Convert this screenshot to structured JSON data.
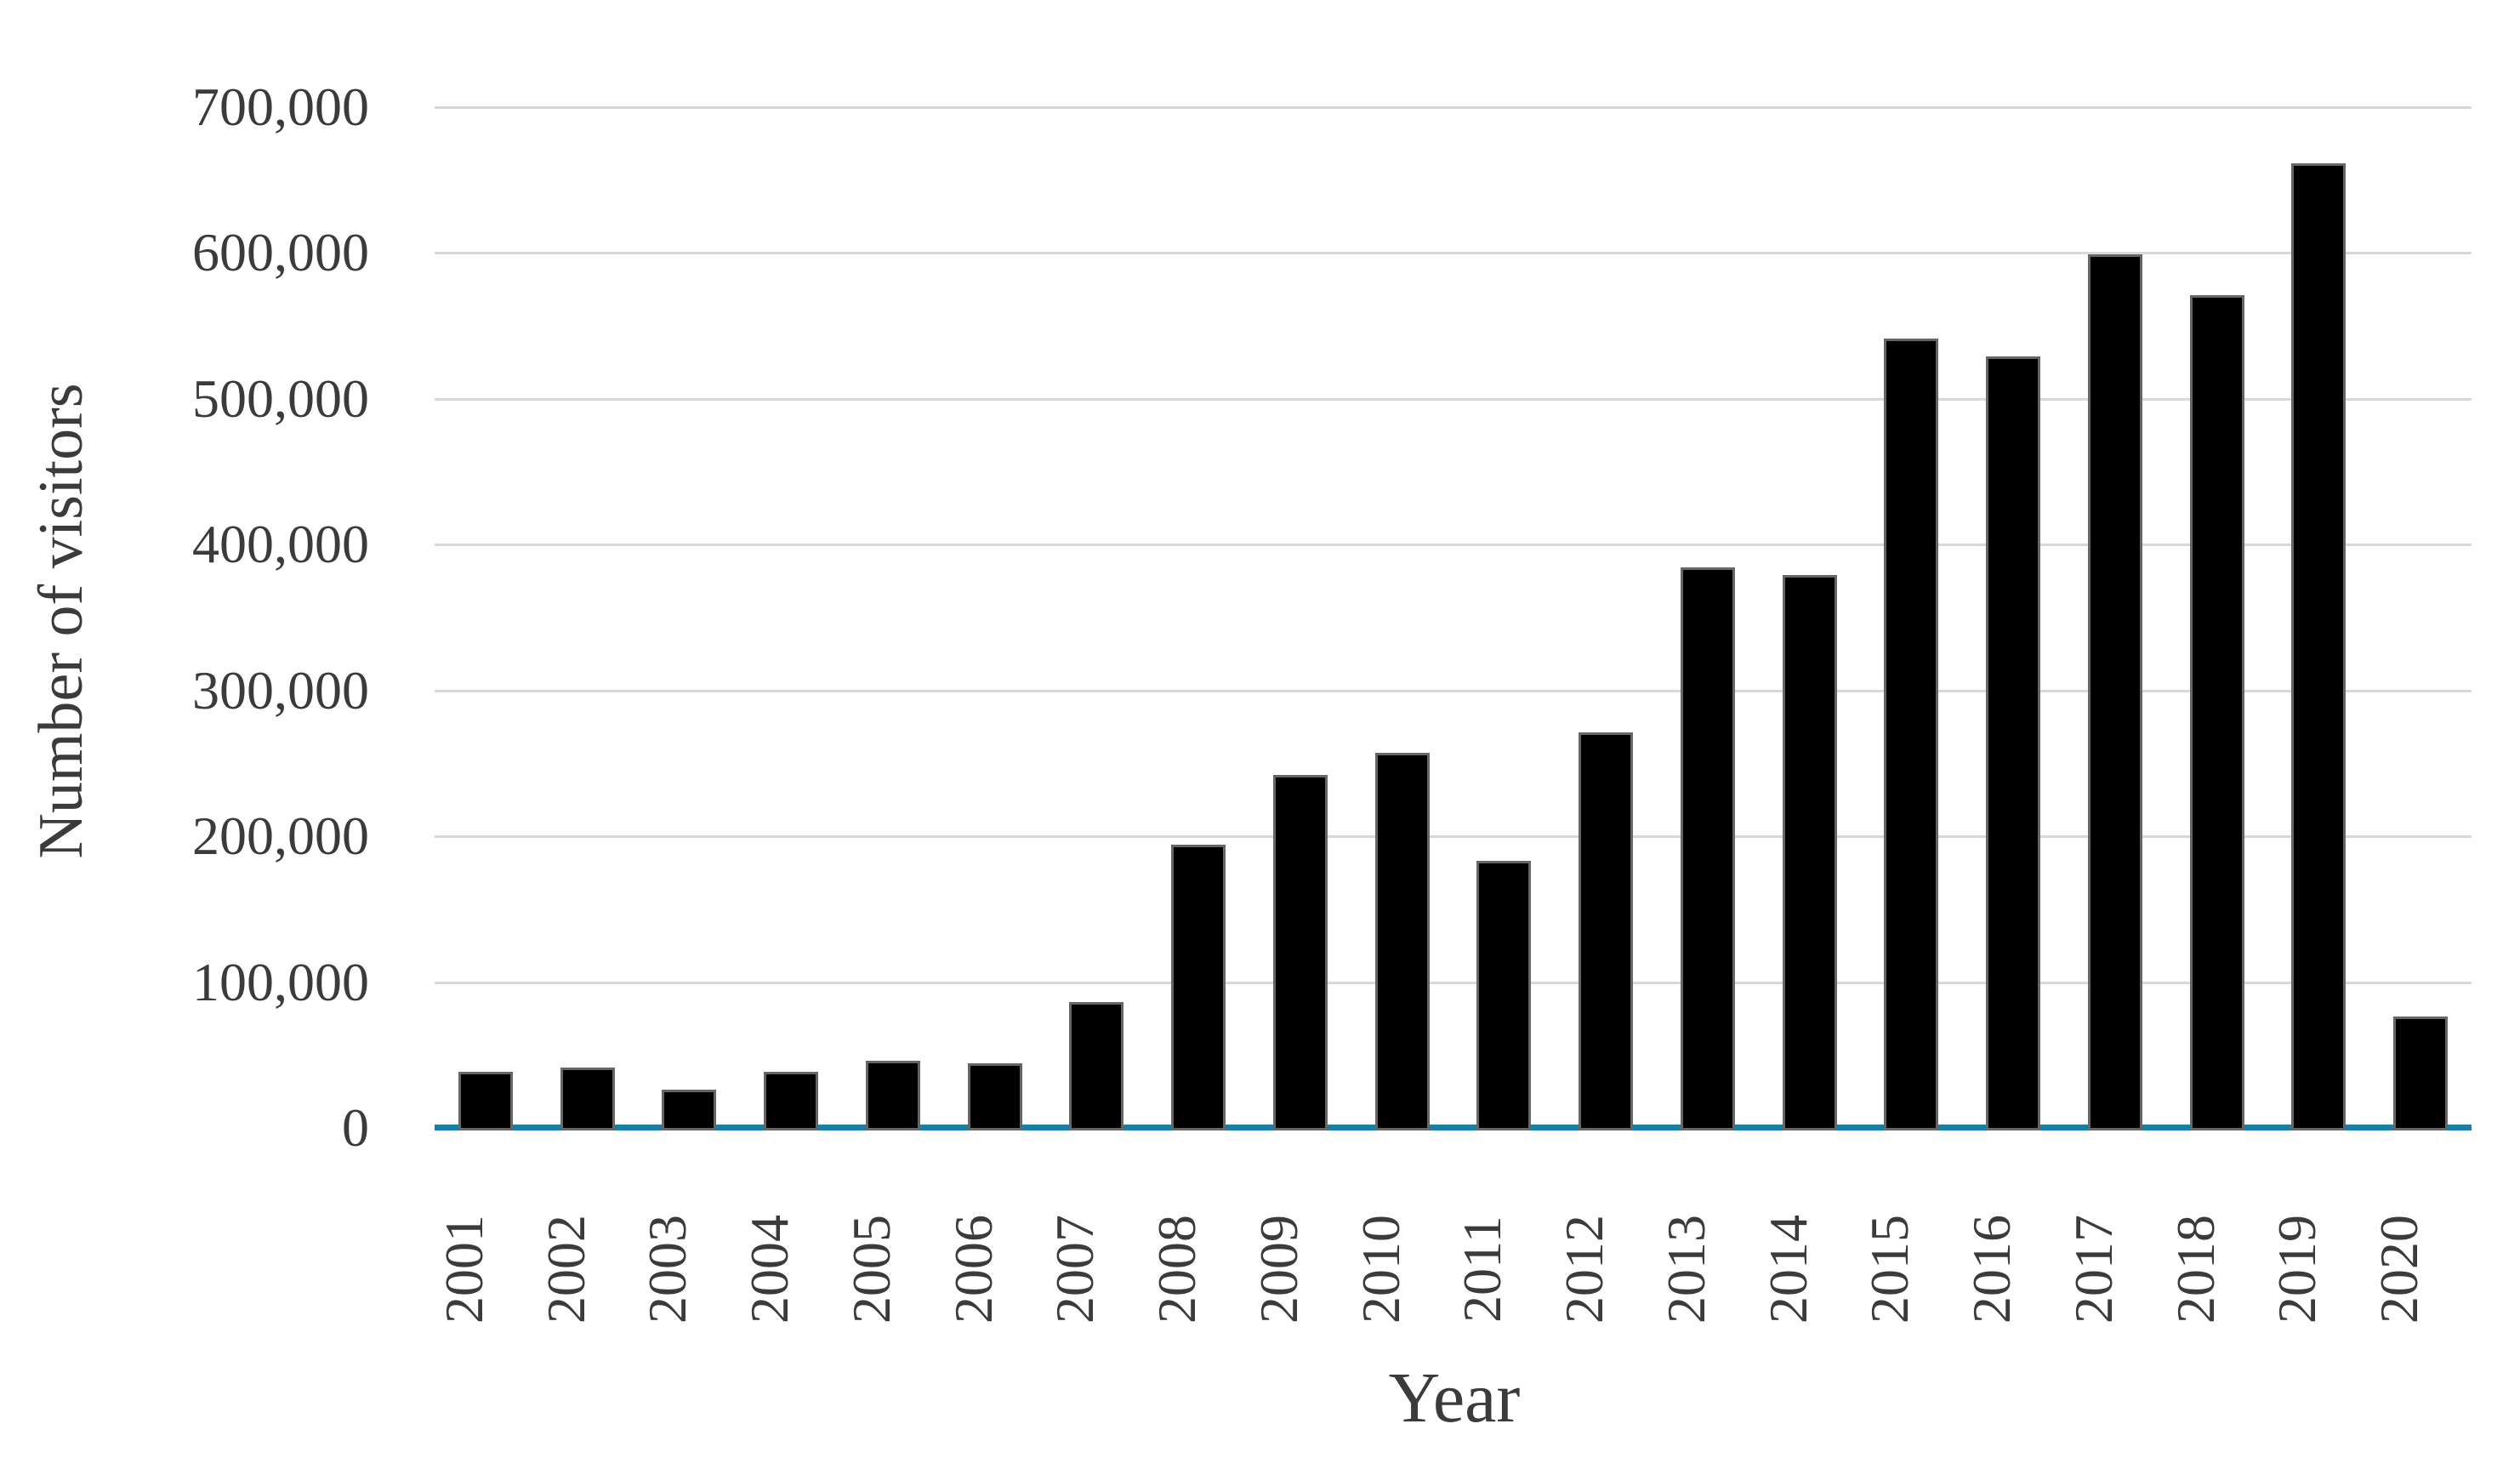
{
  "chart_data": {
    "type": "bar",
    "title": "",
    "xlabel": "Year",
    "ylabel": "Number of visitors",
    "categories": [
      "2001",
      "2002",
      "2003",
      "2004",
      "2005",
      "2006",
      "2007",
      "2008",
      "2009",
      "2010",
      "2011",
      "2012",
      "2013",
      "2014",
      "2015",
      "2016",
      "2017",
      "2018",
      "2019",
      "2020"
    ],
    "values": [
      40000,
      43000,
      28000,
      40000,
      48000,
      46000,
      88000,
      196000,
      244000,
      259000,
      185000,
      273000,
      386000,
      381000,
      543000,
      531000,
      601000,
      573000,
      663000,
      78000
    ],
    "ylim": [
      0,
      700000
    ],
    "ytick_interval": 100000,
    "ytick_labels_top_down": [
      "700,000",
      "600,000",
      "500,000",
      "400,000",
      "300,000",
      "200,000",
      "100,000",
      "0"
    ],
    "grid": "horizontal",
    "legend": "none",
    "colors": {
      "bar_fill": "#000000",
      "bar_border": "#666666",
      "gridline": "#d9d9d9",
      "zero_baseline": "#1b7ea6",
      "text": "#3b3b3b",
      "background": "#ffffff"
    }
  }
}
